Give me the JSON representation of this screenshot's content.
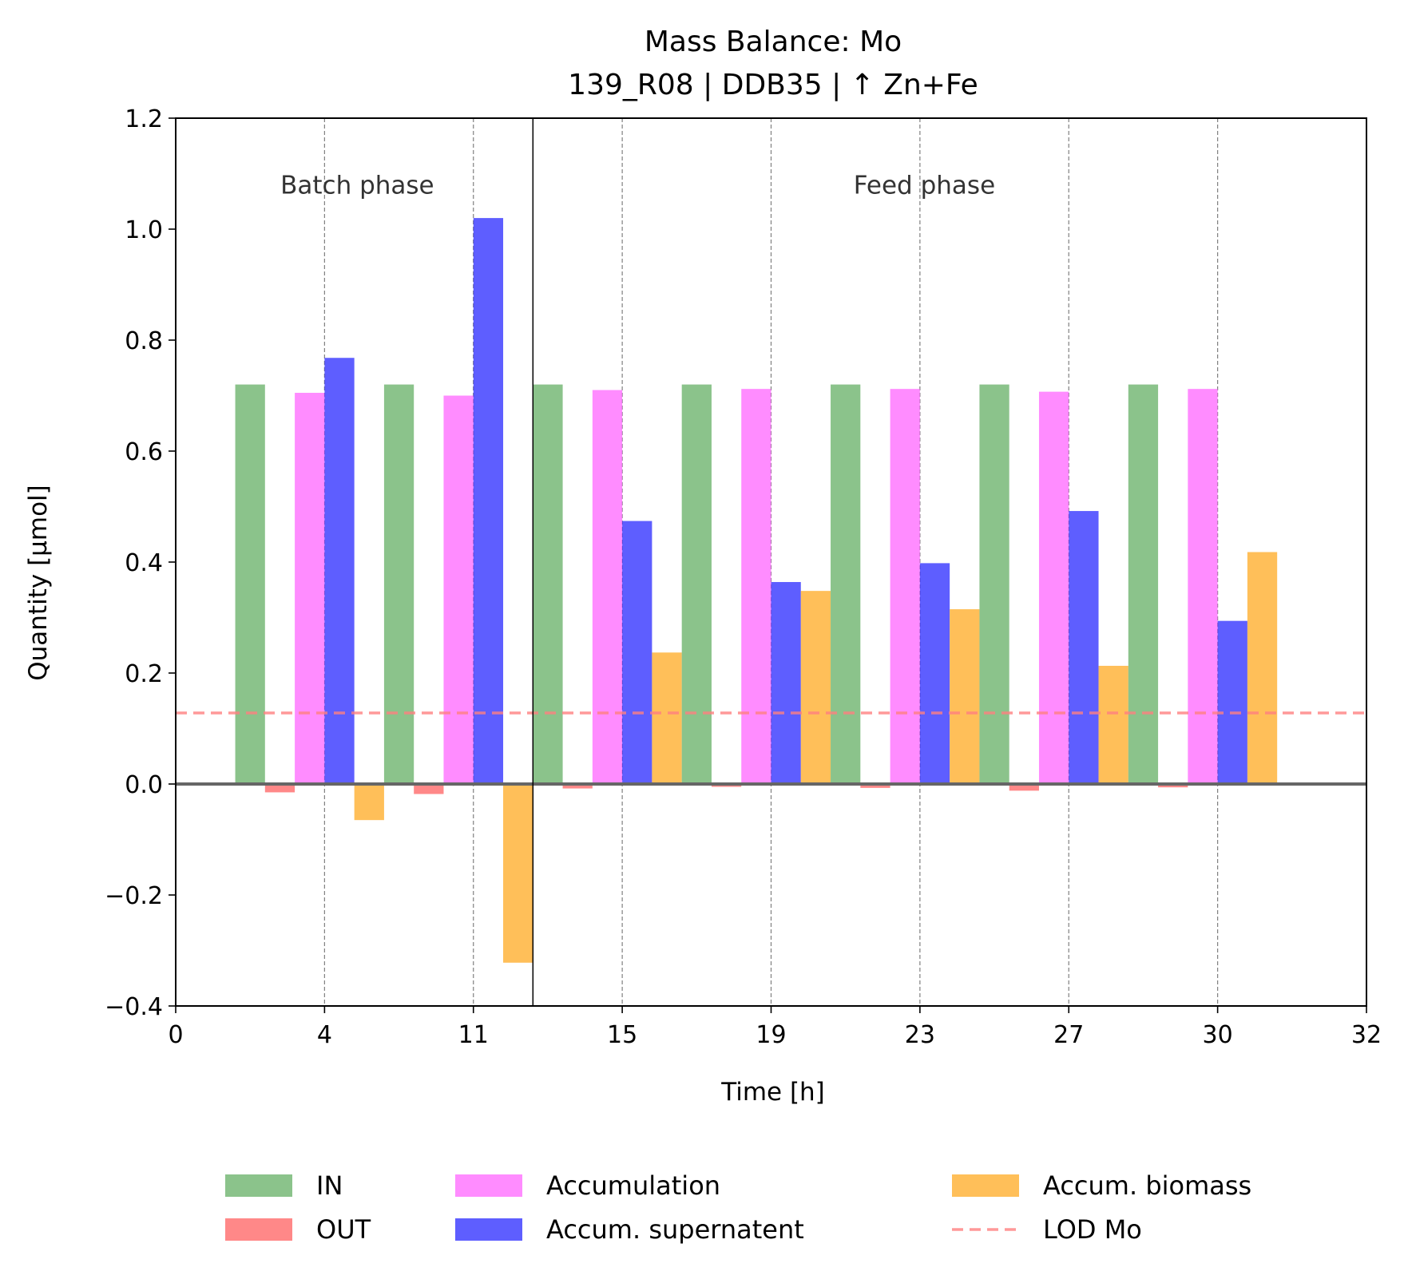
{
  "chart_data": {
    "type": "bar",
    "title": "Mass Balance: Mo",
    "subtitle": "139_R08  |  DDB35  |  ↑ Zn+Fe",
    "xlabel": "Time [h]",
    "ylabel": "Quantity [µmol]",
    "ylim": [
      -0.4,
      1.2
    ],
    "yticks": [
      -0.4,
      -0.2,
      0.0,
      0.2,
      0.4,
      0.6,
      0.8,
      1.0,
      1.2
    ],
    "ytick_labels": [
      "−0.4",
      "−0.2",
      "0.0",
      "0.2",
      "0.4",
      "0.6",
      "0.8",
      "1.0",
      "1.2"
    ],
    "xticks": [
      0,
      1,
      2,
      3,
      4,
      5,
      6,
      7,
      8
    ],
    "xtick_labels": [
      "0",
      "4",
      "11",
      "15",
      "19",
      "23",
      "27",
      "30",
      "32"
    ],
    "xlim": [
      0,
      8
    ],
    "phase_boundary": 2.4,
    "phases": [
      {
        "label": "Batch phase",
        "x": 1.22
      },
      {
        "label": "Feed phase",
        "x": 5.03
      }
    ],
    "phase_label_y": 1.08,
    "group_starts": [
      0.4,
      1.4,
      2.4,
      3.4,
      4.4,
      5.4,
      6.4
    ],
    "bar_width": 0.2,
    "series": [
      {
        "name": "IN",
        "color": "#5aa95a",
        "opacity": 0.7,
        "values": [
          0.72,
          0.72,
          0.72,
          0.72,
          0.72,
          0.72,
          0.72
        ]
      },
      {
        "name": "OUT",
        "color": "#ff5555",
        "opacity": 0.7,
        "values": [
          -0.015,
          -0.018,
          -0.008,
          -0.005,
          -0.007,
          -0.012,
          -0.006
        ]
      },
      {
        "name": "Accumulation",
        "color": "#ff66ff",
        "opacity": 0.75,
        "values": [
          0.705,
          0.7,
          0.71,
          0.712,
          0.712,
          0.707,
          0.712
        ]
      },
      {
        "name": "Accum. supernatent",
        "color": "#2222ff",
        "opacity": 0.73,
        "values": [
          0.768,
          1.02,
          0.474,
          0.364,
          0.398,
          0.492,
          0.294
        ]
      },
      {
        "name": "Accum. biomass",
        "color": "#ffaa22",
        "opacity": 0.75,
        "values": [
          -0.065,
          -0.322,
          0.237,
          0.348,
          0.315,
          0.213,
          0.418
        ]
      }
    ],
    "lod": {
      "name": "LOD Mo",
      "value": 0.128,
      "color": "#ff8080"
    },
    "legend_position": "bottom-center",
    "legend_columns": 3,
    "grid": "vertical dashed at x ticks"
  }
}
